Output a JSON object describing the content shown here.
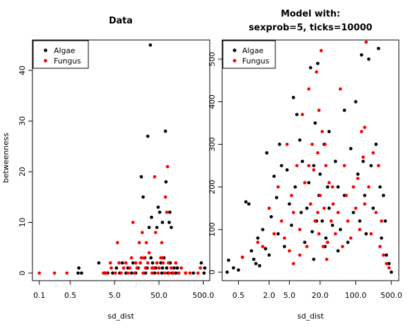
{
  "chart_data": [
    {
      "type": "scatter",
      "title": "Data",
      "xlabel": "sd_dist",
      "ylabel": "betweenness",
      "xscale": "log",
      "xlim": [
        0.07,
        700
      ],
      "ylim": [
        -1.5,
        46
      ],
      "xticks": [
        0.1,
        0.5,
        5.0,
        50.0,
        500.0
      ],
      "xtick_labels": [
        "0.1",
        "0.5",
        "5.0",
        "50.0",
        "500.0"
      ],
      "yticks": [
        0,
        10,
        20,
        30,
        40
      ],
      "ytick_labels": [
        "0",
        "10",
        "20",
        "30",
        "40"
      ],
      "legend": {
        "position": "top-left",
        "entries": [
          "Algae",
          "Fungus"
        ]
      },
      "series": [
        {
          "name": "Algae",
          "color": "#000000",
          "points": [
            [
              0.75,
              0
            ],
            [
              0.78,
              1
            ],
            [
              0.9,
              0
            ],
            [
              2.2,
              2
            ],
            [
              3.0,
              0
            ],
            [
              3.5,
              0
            ],
            [
              4.5,
              0
            ],
            [
              5.5,
              1
            ],
            [
              6.5,
              0
            ],
            [
              7.5,
              2
            ],
            [
              9.0,
              0
            ],
            [
              10,
              1
            ],
            [
              12,
              0
            ],
            [
              13,
              2
            ],
            [
              15,
              0
            ],
            [
              17,
              1
            ],
            [
              19,
              2
            ],
            [
              20,
              19
            ],
            [
              22,
              15
            ],
            [
              24,
              3
            ],
            [
              25,
              0
            ],
            [
              28,
              27
            ],
            [
              32,
              45
            ],
            [
              30,
              9
            ],
            [
              34,
              11
            ],
            [
              36,
              2
            ],
            [
              40,
              0
            ],
            [
              42,
              1
            ],
            [
              45,
              9
            ],
            [
              48,
              13
            ],
            [
              52,
              12
            ],
            [
              55,
              2
            ],
            [
              58,
              0
            ],
            [
              60,
              10
            ],
            [
              65,
              3
            ],
            [
              70,
              28
            ],
            [
              72,
              18
            ],
            [
              75,
              1
            ],
            [
              80,
              0
            ],
            [
              85,
              10
            ],
            [
              88,
              12
            ],
            [
              90,
              2
            ],
            [
              95,
              9
            ],
            [
              100,
              0
            ],
            [
              110,
              1
            ],
            [
              120,
              0
            ],
            [
              130,
              1
            ],
            [
              200,
              0
            ],
            [
              300,
              0
            ],
            [
              450,
              2
            ],
            [
              540,
              1
            ],
            [
              520,
              0
            ],
            [
              60,
              1
            ],
            [
              33,
              3
            ],
            [
              27,
              1
            ]
          ]
        },
        {
          "name": "Fungus",
          "color": "#ff0000",
          "points": [
            [
              0.1,
              0
            ],
            [
              0.22,
              0
            ],
            [
              0.42,
              0
            ],
            [
              2.8,
              0
            ],
            [
              3.3,
              0
            ],
            [
              4.0,
              2
            ],
            [
              4.2,
              1
            ],
            [
              5.2,
              0
            ],
            [
              5.8,
              6
            ],
            [
              6.3,
              2
            ],
            [
              7.0,
              0
            ],
            [
              8.0,
              1
            ],
            [
              9.0,
              2
            ],
            [
              10,
              0
            ],
            [
              11,
              1
            ],
            [
              12,
              3
            ],
            [
              13,
              10
            ],
            [
              14,
              0
            ],
            [
              16,
              1
            ],
            [
              18,
              6
            ],
            [
              19,
              2
            ],
            [
              21,
              8
            ],
            [
              22,
              0
            ],
            [
              23,
              3
            ],
            [
              25,
              1
            ],
            [
              26,
              6
            ],
            [
              28,
              2
            ],
            [
              30,
              4
            ],
            [
              35,
              0
            ],
            [
              38,
              1
            ],
            [
              40,
              19
            ],
            [
              42,
              8
            ],
            [
              45,
              2
            ],
            [
              48,
              0
            ],
            [
              50,
              1
            ],
            [
              55,
              3
            ],
            [
              58,
              6
            ],
            [
              62,
              2
            ],
            [
              68,
              0
            ],
            [
              70,
              15
            ],
            [
              75,
              12
            ],
            [
              78,
              21
            ],
            [
              82,
              2
            ],
            [
              85,
              0
            ],
            [
              95,
              1
            ],
            [
              105,
              0
            ],
            [
              120,
              2
            ],
            [
              140,
              0
            ],
            [
              160,
              1
            ],
            [
              200,
              0
            ],
            [
              250,
              0
            ],
            [
              380,
              0
            ],
            [
              430,
              1
            ],
            [
              35,
              1
            ],
            [
              60,
              3
            ],
            [
              20,
              3
            ],
            [
              15,
              2
            ]
          ]
        }
      ]
    },
    {
      "type": "scatter",
      "title": "Model with:",
      "subtitle": "sexprob=5, ticks=10000",
      "xlabel": "sd_dist",
      "ylabel": "",
      "xscale": "log",
      "xlim": [
        0.24,
        700
      ],
      "ylim": [
        -20,
        545
      ],
      "xticks": [
        0.5,
        2.0,
        5.0,
        20.0,
        100.0,
        500.0
      ],
      "xtick_labels": [
        "0.5",
        "2.0",
        "5.0",
        "20.0",
        "100.0",
        "500.0"
      ],
      "yticks": [
        0,
        100,
        200,
        300,
        400,
        500
      ],
      "ytick_labels": [
        "0",
        "100",
        "200",
        "300",
        "400",
        "500"
      ],
      "legend": {
        "position": "top-left",
        "entries": [
          "Algae",
          "Fungus"
        ]
      },
      "series": [
        {
          "name": "Algae",
          "color": "#000000",
          "points": [
            [
              0.3,
              0
            ],
            [
              0.32,
              28
            ],
            [
              0.4,
              10
            ],
            [
              0.5,
              5
            ],
            [
              0.6,
              35
            ],
            [
              0.7,
              165
            ],
            [
              0.8,
              160
            ],
            [
              0.9,
              50
            ],
            [
              1.0,
              30
            ],
            [
              1.1,
              20
            ],
            [
              1.2,
              80
            ],
            [
              1.3,
              15
            ],
            [
              1.5,
              100
            ],
            [
              1.7,
              55
            ],
            [
              1.8,
              280
            ],
            [
              2.0,
              40
            ],
            [
              2.2,
              130
            ],
            [
              2.5,
              225
            ],
            [
              2.8,
              175
            ],
            [
              3.0,
              90
            ],
            [
              3.2,
              300
            ],
            [
              3.5,
              250
            ],
            [
              4.0,
              60
            ],
            [
              4.5,
              240
            ],
            [
              5.0,
              160
            ],
            [
              5.5,
              110
            ],
            [
              6.0,
              410
            ],
            [
              6.5,
              200
            ],
            [
              7.0,
              370
            ],
            [
              8.0,
              310
            ],
            [
              8.5,
              140
            ],
            [
              9.0,
              260
            ],
            [
              10,
              70
            ],
            [
              11,
              150
            ],
            [
              12,
              210
            ],
            [
              13,
              480
            ],
            [
              14,
              95
            ],
            [
              15,
              250
            ],
            [
              16,
              350
            ],
            [
              17,
              120
            ],
            [
              18,
              490
            ],
            [
              19,
              180
            ],
            [
              20,
              230
            ],
            [
              22,
              120
            ],
            [
              24,
              300
            ],
            [
              26,
              80
            ],
            [
              28,
              200
            ],
            [
              30,
              150
            ],
            [
              35,
              110
            ],
            [
              40,
              260
            ],
            [
              45,
              50
            ],
            [
              50,
              100
            ],
            [
              60,
              180
            ],
            [
              70,
              70
            ],
            [
              80,
              290
            ],
            [
              90,
              140
            ],
            [
              100,
              400
            ],
            [
              110,
              230
            ],
            [
              120,
              120
            ],
            [
              130,
              510
            ],
            [
              140,
              260
            ],
            [
              150,
              180
            ],
            [
              160,
              90
            ],
            [
              180,
              500
            ],
            [
              200,
              250
            ],
            [
              220,
              150
            ],
            [
              250,
              300
            ],
            [
              280,
              525
            ],
            [
              300,
              200
            ],
            [
              320,
              80
            ],
            [
              350,
              180
            ],
            [
              380,
              120
            ],
            [
              400,
              40
            ],
            [
              450,
              20
            ],
            [
              500,
              0
            ],
            [
              30,
              330
            ],
            [
              60,
              380
            ],
            [
              45,
              200
            ],
            [
              25,
              60
            ],
            [
              15,
              30
            ]
          ]
        },
        {
          "name": "Fungus",
          "color": "#ff0000",
          "points": [
            [
              0.6,
              35
            ],
            [
              1.2,
              70
            ],
            [
              1.5,
              60
            ],
            [
              2.0,
              150
            ],
            [
              2.5,
              90
            ],
            [
              3.0,
              200
            ],
            [
              3.5,
              120
            ],
            [
              4.0,
              80
            ],
            [
              4.5,
              300
            ],
            [
              5.0,
              50
            ],
            [
              5.5,
              180
            ],
            [
              6.0,
              140
            ],
            [
              7.0,
              250
            ],
            [
              8.0,
              100
            ],
            [
              9.0,
              370
            ],
            [
              10,
              210
            ],
            [
              11,
              60
            ],
            [
              12,
              430
            ],
            [
              13,
              160
            ],
            [
              14,
              300
            ],
            [
              15,
              240
            ],
            [
              16,
              120
            ],
            [
              17,
              470
            ],
            [
              18,
              280
            ],
            [
              19,
              90
            ],
            [
              20,
              180
            ],
            [
              21,
              520
            ],
            [
              22,
              330
            ],
            [
              24,
              150
            ],
            [
              26,
              250
            ],
            [
              28,
              70
            ],
            [
              30,
              210
            ],
            [
              33,
              120
            ],
            [
              36,
              160
            ],
            [
              40,
              90
            ],
            [
              45,
              140
            ],
            [
              50,
              430
            ],
            [
              55,
              60
            ],
            [
              60,
              250
            ],
            [
              65,
              180
            ],
            [
              70,
              120
            ],
            [
              80,
              80
            ],
            [
              90,
              200
            ],
            [
              100,
              150
            ],
            [
              110,
              220
            ],
            [
              120,
              100
            ],
            [
              130,
              330
            ],
            [
              140,
              270
            ],
            [
              150,
              160
            ],
            [
              160,
              540
            ],
            [
              180,
              200
            ],
            [
              200,
              90
            ],
            [
              220,
              280
            ],
            [
              250,
              140
            ],
            [
              280,
              250
            ],
            [
              300,
              60
            ],
            [
              320,
              120
            ],
            [
              350,
              40
            ],
            [
              400,
              20
            ],
            [
              450,
              10
            ],
            [
              25,
              300
            ],
            [
              19,
              380
            ],
            [
              35,
              200
            ],
            [
              12,
              250
            ],
            [
              8,
              40
            ],
            [
              6,
              20
            ],
            [
              18,
              140
            ],
            [
              23,
              60
            ],
            [
              27,
              30
            ],
            [
              150,
              340
            ]
          ]
        }
      ]
    }
  ]
}
